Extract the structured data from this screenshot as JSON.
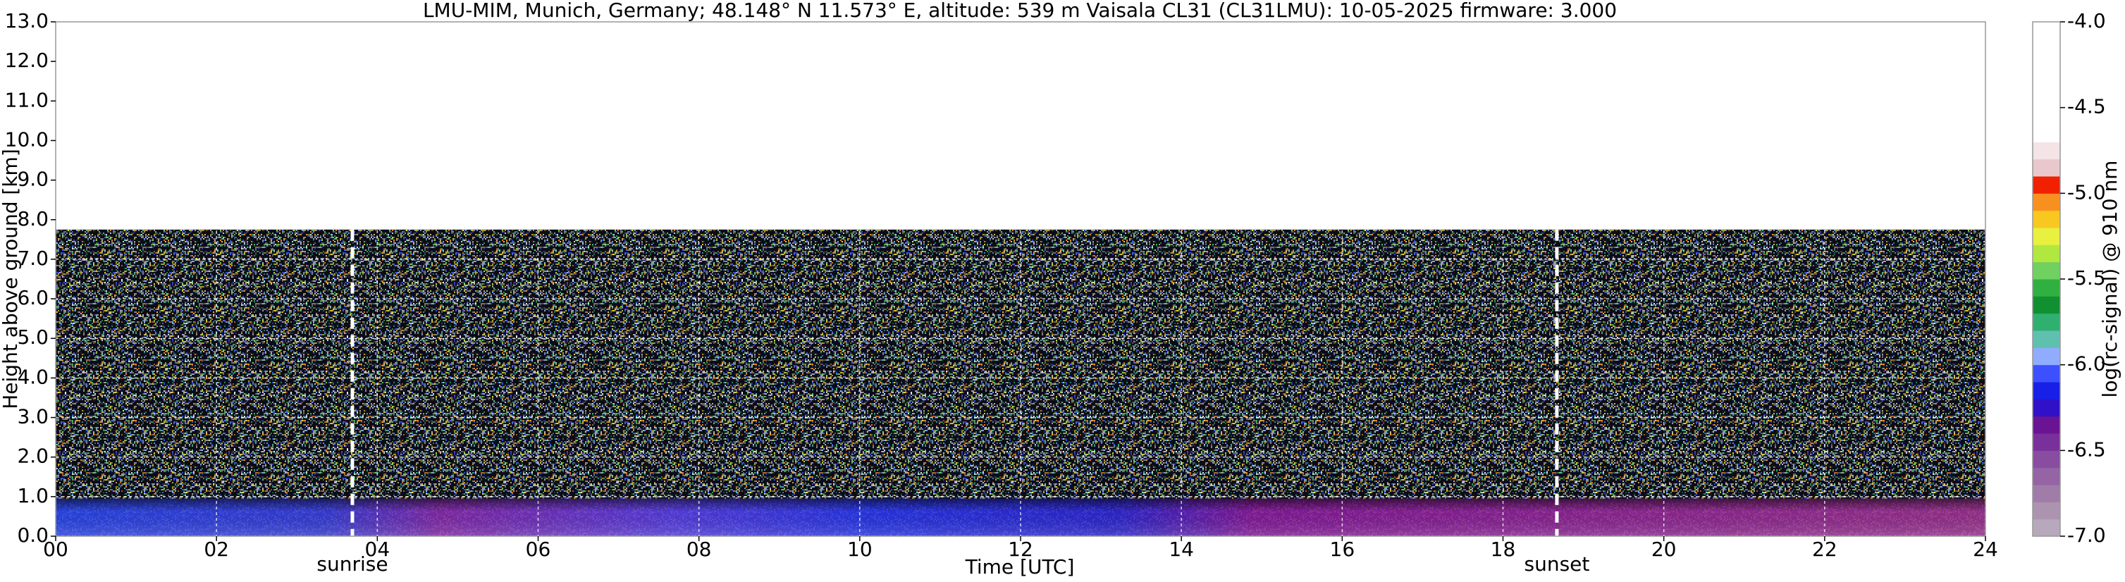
{
  "chart_data": {
    "type": "heatmap",
    "title": "LMU-MIM, Munich, Germany; 48.148° N 11.573° E, altitude: 539 m    Vaisala CL31 (CL31LMU): 10-05-2025    firmware: 3.000",
    "x_label": "Time [UTC]",
    "y_label": "Height above ground [km]",
    "xlim": [
      0,
      24
    ],
    "xticks": [
      {
        "value": 0,
        "label": "00"
      },
      {
        "value": 2,
        "label": "02"
      },
      {
        "value": 4,
        "label": "04"
      },
      {
        "value": 6,
        "label": "06"
      },
      {
        "value": 8,
        "label": "08"
      },
      10,
      12,
      14,
      16,
      18,
      20,
      22,
      24
    ],
    "ylim": [
      0,
      13
    ],
    "yticks": [
      {
        "value": 0,
        "label": "0.0"
      },
      {
        "value": 1,
        "label": "1.0"
      },
      {
        "value": 2,
        "label": "2.0"
      },
      {
        "value": 3,
        "label": "3.0"
      },
      {
        "value": 4,
        "label": "4.0"
      },
      {
        "value": 5,
        "label": "5.0"
      },
      {
        "value": 6,
        "label": "6.0"
      },
      {
        "value": 7,
        "label": "7.0"
      },
      {
        "value": 8,
        "label": "8.0"
      },
      {
        "value": 9,
        "label": "9.0"
      },
      {
        "value": 10,
        "label": "10.0"
      },
      {
        "value": 11,
        "label": "11.0"
      },
      {
        "value": 12,
        "label": "12.0"
      },
      {
        "value": 13,
        "label": "13.0"
      }
    ],
    "grid": true,
    "annotations": [
      {
        "text": "sunrise",
        "x": 3.69
      },
      {
        "text": "sunset",
        "x": 18.67
      }
    ],
    "colorbar": {
      "label": "log(rc-signal) @ 910 nm",
      "lim": [
        -7.0,
        -4.0
      ],
      "ticks": [
        {
          "value": -7.0,
          "label": "-7.0"
        },
        {
          "value": -6.5,
          "label": "-6.5"
        },
        {
          "value": -6.0,
          "label": "-6.0"
        },
        {
          "value": -5.5,
          "label": "-5.5"
        },
        {
          "value": -5.0,
          "label": "-5.0"
        },
        {
          "value": -4.5,
          "label": "-4.5"
        },
        {
          "value": -4.0,
          "label": "-4.0"
        }
      ],
      "colors": [
        "#b8a8bc",
        "#ac94b0",
        "#a07ca8",
        "#9464a4",
        "#884ca0",
        "#7a309a",
        "#6a1494",
        "#3010c8",
        "#1820e8",
        "#3c50ff",
        "#90acff",
        "#60c0b0",
        "#30b070",
        "#109030",
        "#30b040",
        "#70d060",
        "#b0e840",
        "#e8f040",
        "#f8c820",
        "#f89020",
        "#f02000",
        "#e8c8cc",
        "#f4e4e6",
        "#ffffff",
        "#ffffff",
        "#ffffff",
        "#ffffff",
        "#ffffff",
        "#ffffff",
        "#ffffff"
      ]
    }
  }
}
